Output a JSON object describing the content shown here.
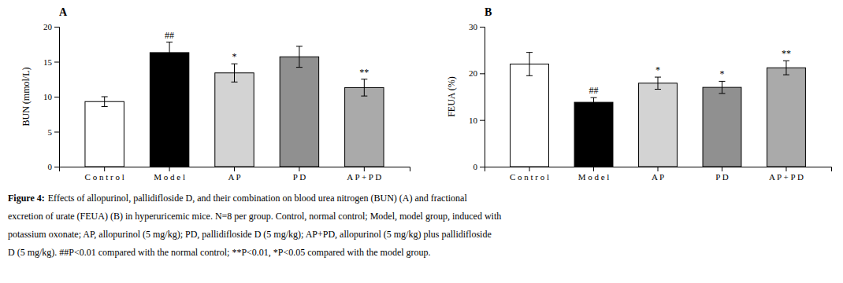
{
  "chart_data": [
    {
      "type": "bar",
      "title": "A",
      "categories": [
        "C o n t r o l",
        "M o d e l",
        "A P",
        "P D",
        "A P + P D"
      ],
      "values": [
        9.3,
        16.3,
        13.4,
        15.7,
        11.3
      ],
      "errors": [
        0.7,
        1.5,
        1.3,
        1.5,
        1.2
      ],
      "ylabel": "BUN (mmol/L)",
      "ylim": [
        0,
        20
      ],
      "yticks": [
        0,
        5,
        10,
        15,
        20
      ],
      "colors": [
        "#ffffff",
        "#000000",
        "#d3d3d3",
        "#909090",
        "#aaaaaa"
      ],
      "annotations": [
        null,
        "##",
        "*",
        null,
        "**"
      ],
      "grid": false
    },
    {
      "type": "bar",
      "title": "B",
      "categories": [
        "C o n t r o l",
        "M o d e l",
        "A P",
        "P D",
        "A P + P D"
      ],
      "values": [
        22.0,
        13.8,
        17.9,
        17.0,
        21.2
      ],
      "errors": [
        2.5,
        1.0,
        1.3,
        1.3,
        1.5
      ],
      "ylabel": "FEUA (%)",
      "ylim": [
        0,
        30
      ],
      "yticks": [
        0,
        10,
        20,
        30
      ],
      "colors": [
        "#ffffff",
        "#000000",
        "#d3d3d3",
        "#909090",
        "#aaaaaa"
      ],
      "annotations": [
        null,
        "##",
        "*",
        "*",
        "**"
      ],
      "grid": false
    }
  ],
  "caption_label": "Figure 4:",
  "caption": [
    "Effects of allopurinol, pallidifloside D, and their combination on blood urea nitrogen (BUN) (A) and fractional",
    "excretion of urate (FEUA) (B) in hyperuricemic mice. N=8 per group. Control, normal control; Model, model group, induced with",
    "potassium oxonate; AP, allopurinol (5 mg/kg); PD, pallidifloside D (5 mg/kg); AP+PD, allopurinol (5 mg/kg) plus pallidifloside",
    "D (5 mg/kg). ##P<0.01 compared with the normal control; **P<0.01, *P<0.05 compared with the model group."
  ]
}
